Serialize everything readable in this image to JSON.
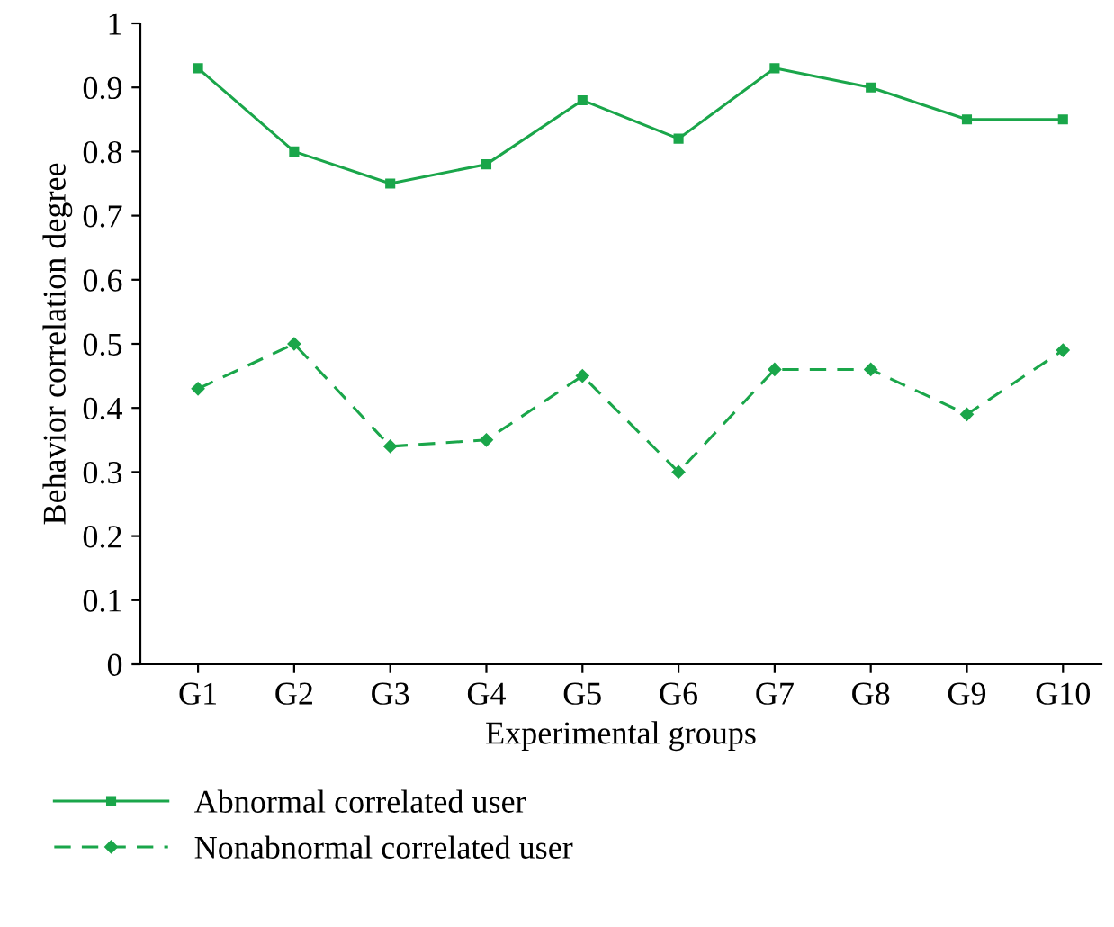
{
  "chart_data": {
    "type": "line",
    "xlabel": "Experimental groups",
    "ylabel": "Behavior correlation degree",
    "categories": [
      "G1",
      "G2",
      "G3",
      "G4",
      "G5",
      "G6",
      "G7",
      "G8",
      "G9",
      "G10"
    ],
    "series": [
      {
        "name": "Abnormal correlated user",
        "color": "#1aa64a",
        "marker": "square",
        "line_style": "solid",
        "values": [
          0.93,
          0.8,
          0.75,
          0.78,
          0.88,
          0.82,
          0.93,
          0.9,
          0.85,
          0.85
        ]
      },
      {
        "name": "Nonabnormal correlated user",
        "color": "#1aa64a",
        "marker": "diamond",
        "line_style": "dashed",
        "values": [
          0.43,
          0.5,
          0.34,
          0.35,
          0.45,
          0.3,
          0.46,
          0.46,
          0.39,
          0.49
        ]
      }
    ],
    "ylim": [
      0,
      1
    ],
    "yticks": [
      0,
      0.1,
      0.2,
      0.3,
      0.4,
      0.5,
      0.6,
      0.7,
      0.8,
      0.9,
      1
    ],
    "grid": false,
    "legend": "bottom"
  }
}
